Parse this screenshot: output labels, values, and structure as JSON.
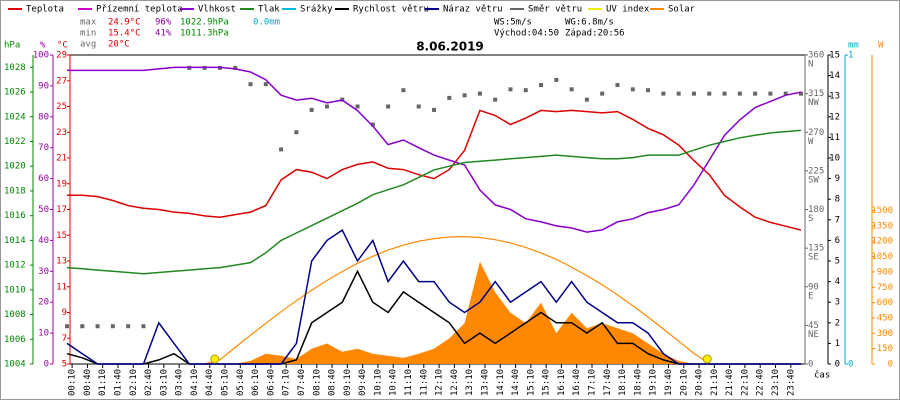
{
  "chart_data": {
    "type": "line",
    "title": "8.06.2019",
    "x_label": "čas",
    "stats": [
      {
        "label": "max",
        "temp": "24.9°C",
        "hum": "96%",
        "pres": "1022.9hPa",
        "rain": "0.0mm"
      },
      {
        "label": "min",
        "temp": "15.4°C",
        "hum": "41%",
        "pres": "1011.3hPa"
      },
      {
        "label": "avg",
        "temp": "20°C"
      }
    ],
    "wind_info": [
      "WS:5m/s",
      "WG:6.8m/s"
    ],
    "sun_info": [
      "Východ:04:50",
      "Západ:20:56"
    ],
    "xlim": [
      0,
      1440
    ],
    "xticks": [
      {
        "value": 10,
        "label": "00:10"
      },
      {
        "value": 40,
        "label": "00:40"
      },
      {
        "value": 70,
        "label": "01:10"
      },
      {
        "value": 100,
        "label": "01:40"
      },
      {
        "value": 130,
        "label": "02:10"
      },
      {
        "value": 160,
        "label": "02:40"
      },
      {
        "value": 190,
        "label": "03:10"
      },
      {
        "value": 220,
        "label": "03:40"
      },
      {
        "value": 250,
        "label": "04:10"
      },
      {
        "value": 280,
        "label": "04:40"
      },
      {
        "value": 310,
        "label": "05:10"
      },
      {
        "value": 340,
        "label": "05:40"
      },
      {
        "value": 370,
        "label": "06:10"
      },
      {
        "value": 400,
        "label": "06:40"
      },
      {
        "value": 430,
        "label": "07:10"
      },
      {
        "value": 460,
        "label": "07:40"
      },
      {
        "value": 490,
        "label": "08:10"
      },
      {
        "value": 520,
        "label": "08:40"
      },
      {
        "value": 550,
        "label": "09:10"
      },
      {
        "value": 580,
        "label": "09:40"
      },
      {
        "value": 610,
        "label": "10:10"
      },
      {
        "value": 640,
        "label": "10:40"
      },
      {
        "value": 670,
        "label": "11:10"
      },
      {
        "value": 700,
        "label": "11:40"
      },
      {
        "value": 730,
        "label": "12:10"
      },
      {
        "value": 760,
        "label": "12:40"
      },
      {
        "value": 790,
        "label": "13:10"
      },
      {
        "value": 820,
        "label": "13:40"
      },
      {
        "value": 850,
        "label": "14:10"
      },
      {
        "value": 880,
        "label": "14:40"
      },
      {
        "value": 910,
        "label": "15:10"
      },
      {
        "value": 940,
        "label": "15:40"
      },
      {
        "value": 970,
        "label": "16:10"
      },
      {
        "value": 1000,
        "label": "16:40"
      },
      {
        "value": 1030,
        "label": "17:10"
      },
      {
        "value": 1060,
        "label": "17:40"
      },
      {
        "value": 1090,
        "label": "18:10"
      },
      {
        "value": 1120,
        "label": "18:40"
      },
      {
        "value": 1150,
        "label": "19:10"
      },
      {
        "value": 1180,
        "label": "19:40"
      },
      {
        "value": 1210,
        "label": "20:10"
      },
      {
        "value": 1240,
        "label": "20:40"
      },
      {
        "value": 1270,
        "label": "21:10"
      },
      {
        "value": 1300,
        "label": "21:40"
      },
      {
        "value": 1330,
        "label": "22:10"
      },
      {
        "value": 1360,
        "label": "22:40"
      },
      {
        "value": 1390,
        "label": "23:10"
      },
      {
        "value": 1420,
        "label": "23:40"
      }
    ],
    "axes": {
      "hPa": {
        "unit": "hPa",
        "color": "#008800",
        "lim": [
          1004,
          1029
        ],
        "ticks": [
          1004,
          1006,
          1008,
          1010,
          1012,
          1014,
          1016,
          1018,
          1020,
          1022,
          1024,
          1026,
          1028
        ]
      },
      "%": {
        "unit": "%",
        "color": "#9900aa",
        "lim": [
          0,
          100
        ],
        "ticks": [
          0,
          10,
          20,
          30,
          40,
          50,
          60,
          70,
          80,
          90,
          100
        ]
      },
      "°C": {
        "unit": "°C",
        "color": "#dd0000",
        "lim": [
          5,
          29
        ],
        "ticks": [
          5,
          7,
          9,
          11,
          13,
          15,
          17,
          19,
          21,
          23,
          25,
          27,
          29
        ]
      },
      "dir": {
        "color": "#666666",
        "lim": [
          0,
          360
        ],
        "ticks": [
          0,
          45,
          90,
          135,
          180,
          225,
          270,
          315,
          360
        ],
        "compass": [
          "NE",
          "E",
          "SE",
          "S",
          "SW",
          "W",
          "NW",
          "N"
        ]
      },
      "m/s": {
        "color": "#000000",
        "lim": [
          0,
          15
        ],
        "ticks": [
          0,
          1,
          2,
          3,
          4,
          5,
          6,
          7,
          8,
          9,
          10,
          11,
          12,
          13,
          14,
          15
        ]
      },
      "mm": {
        "unit": "mm",
        "color": "#00aacc",
        "lim": [
          0,
          1
        ],
        "ticks": [
          0,
          1
        ]
      },
      "W": {
        "unit": "W",
        "color": "#ff8800",
        "lim": [
          0,
          3020
        ],
        "ticks": [
          0,
          150,
          300,
          450,
          600,
          750,
          900,
          1050,
          1200,
          1350,
          1500
        ]
      }
    },
    "x": [
      0,
      30,
      60,
      90,
      120,
      150,
      180,
      210,
      240,
      270,
      300,
      330,
      360,
      390,
      420,
      450,
      480,
      510,
      540,
      570,
      600,
      630,
      660,
      690,
      720,
      750,
      780,
      810,
      840,
      870,
      900,
      930,
      960,
      990,
      1020,
      1050,
      1080,
      1110,
      1140,
      1170,
      1200,
      1230,
      1260,
      1290,
      1320,
      1350,
      1380,
      1410,
      1440
    ],
    "series": [
      {
        "name": "Teplota",
        "color": "#dd0000",
        "axis": "°C",
        "kind": "line",
        "values": [
          18.1,
          18.1,
          18,
          17.7,
          17.3,
          17.1,
          17,
          16.8,
          16.7,
          16.5,
          16.4,
          16.6,
          16.8,
          17.3,
          19.3,
          20.1,
          19.9,
          19.4,
          20.1,
          20.5,
          20.7,
          20.2,
          20.1,
          19.7,
          19.4,
          20.1,
          21.6,
          24.7,
          24.3,
          23.6,
          24.1,
          24.7,
          24.6,
          24.7,
          24.6,
          24.5,
          24.6,
          24,
          23.3,
          22.8,
          22,
          20.8,
          19.7,
          18.1,
          17.2,
          16.4,
          16,
          15.7,
          15.4
        ]
      },
      {
        "name": "Přízemní teplota",
        "color": "#cc00cc"
      },
      {
        "name": "Vlhkost",
        "color": "#8800cc",
        "axis": "%",
        "kind": "line",
        "values": [
          95,
          95,
          95,
          95,
          95,
          95,
          95.5,
          96,
          96,
          96,
          96,
          95.5,
          94.5,
          92,
          87,
          85.4,
          86,
          84.5,
          85.4,
          82,
          77,
          71,
          72.5,
          70,
          67.6,
          66,
          64.4,
          56.3,
          51.5,
          50,
          47,
          46,
          44.7,
          44,
          42.7,
          43.4,
          46,
          47,
          49,
          50,
          51.5,
          58,
          66,
          74,
          79,
          83,
          85,
          87,
          88
        ]
      },
      {
        "name": "Tlak",
        "color": "#228822",
        "axis": "hPa",
        "kind": "line",
        "values": [
          1011.8,
          1011.7,
          1011.6,
          1011.5,
          1011.4,
          1011.3,
          1011.4,
          1011.5,
          1011.6,
          1011.7,
          1011.8,
          1012,
          1012.2,
          1013,
          1014,
          1014.6,
          1015.2,
          1015.8,
          1016.4,
          1017,
          1017.7,
          1018.1,
          1018.5,
          1019.1,
          1019.7,
          1020,
          1020.3,
          1020.4,
          1020.5,
          1020.6,
          1020.7,
          1020.8,
          1020.9,
          1020.8,
          1020.7,
          1020.6,
          1020.6,
          1020.7,
          1020.9,
          1020.9,
          1020.9,
          1021.3,
          1021.7,
          1022,
          1022.3,
          1022.5,
          1022.7,
          1022.8,
          1022.9
        ]
      },
      {
        "name": "Srážky",
        "color": "#00bbdd"
      },
      {
        "name": "Rychlost větru",
        "color": "#000000",
        "axis": "m/s",
        "kind": "line",
        "values": [
          0.5,
          0.3,
          0,
          0,
          0,
          0,
          0.2,
          0.5,
          0,
          0,
          0,
          0,
          0,
          0,
          0,
          0.2,
          2,
          2.5,
          3,
          4.5,
          3,
          2.5,
          3.5,
          3,
          2.5,
          2,
          1,
          1.5,
          1,
          1.5,
          2,
          2.5,
          2,
          2,
          1.5,
          2,
          1,
          1,
          0.5,
          0.2,
          0,
          0,
          0,
          0,
          0,
          0,
          0,
          0,
          0
        ]
      },
      {
        "name": "Náraz větru",
        "color": "#000088",
        "axis": "m/s",
        "kind": "line",
        "values": [
          1,
          0.5,
          0,
          0,
          0,
          0,
          2,
          1,
          0,
          0,
          0,
          0,
          0,
          0,
          0,
          1,
          5,
          6,
          6.5,
          5,
          6,
          4,
          5,
          4,
          4,
          3,
          2.5,
          3,
          4,
          3,
          3.5,
          4,
          3,
          4,
          3,
          2.5,
          2,
          2,
          1.5,
          0.5,
          0,
          0,
          0,
          0,
          0,
          0,
          0,
          0,
          0
        ]
      },
      {
        "name": "Směr větru",
        "color": "#666666",
        "axis": "dir",
        "kind": "points",
        "values": [
          44,
          44,
          44,
          44,
          44,
          44,
          null,
          null,
          345,
          345,
          345,
          345,
          326,
          326,
          250,
          270,
          296,
          300,
          308,
          300,
          279,
          300,
          319,
          300,
          296,
          310,
          313,
          315,
          308,
          320,
          319,
          325,
          331,
          320,
          308,
          315,
          325,
          320,
          319,
          315,
          315,
          315,
          315,
          315,
          315,
          315,
          315,
          315,
          315
        ]
      },
      {
        "name": "UV index",
        "color": "#eeee00"
      },
      {
        "name": "Solar",
        "color": "#ff8800",
        "axis": "W",
        "kind": "area",
        "values": [
          0,
          0,
          0,
          0,
          0,
          0,
          0,
          0,
          0,
          0,
          0,
          0,
          30,
          100,
          80,
          50,
          150,
          200,
          120,
          150,
          100,
          80,
          60,
          100,
          150,
          250,
          400,
          1000,
          700,
          500,
          400,
          600,
          300,
          500,
          350,
          400,
          350,
          300,
          200,
          100,
          30,
          0,
          0,
          0,
          0,
          0,
          0,
          0,
          0
        ],
        "envelope": [
          null,
          null,
          null,
          null,
          null,
          null,
          null,
          null,
          null,
          0,
          41,
          162,
          281,
          398,
          511,
          619,
          721,
          817,
          904,
          984,
          1053,
          1113,
          1162,
          1200,
          1226,
          1241,
          1245,
          1236,
          1215,
          1184,
          1140,
          1086,
          1022,
          947,
          864,
          774,
          675,
          570,
          458,
          342,
          223,
          104,
          0,
          null,
          null,
          null,
          null,
          null,
          null
        ]
      }
    ]
  }
}
